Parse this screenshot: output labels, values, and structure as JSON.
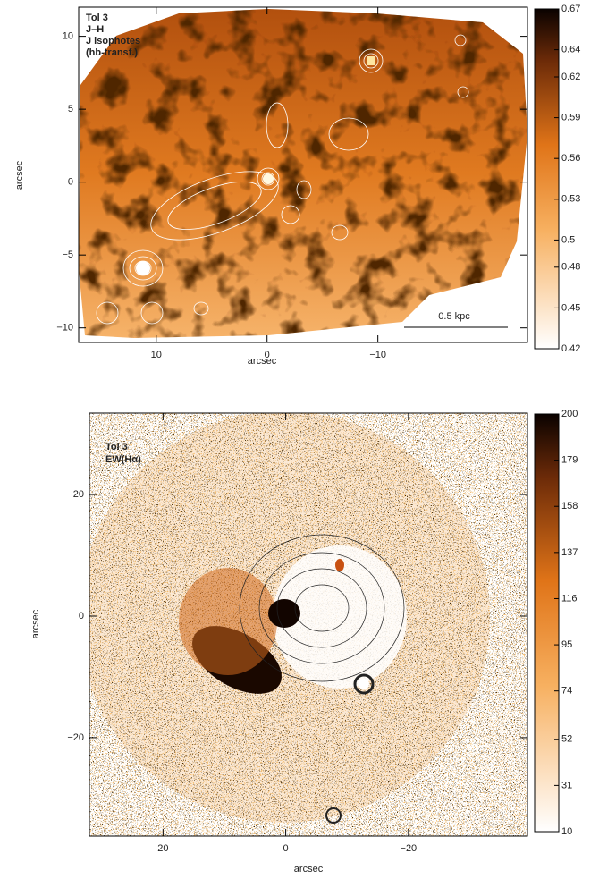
{
  "chart_data": [
    {
      "type": "image",
      "annotations": [
        "Tol 3",
        "J–H",
        "J isophotes",
        "(hb-transf.)"
      ],
      "scalebar_label": "0.5 kpc",
      "xlabel": "arcsec",
      "ylabel": "arcsec",
      "xlim": [
        17,
        -23.5
      ],
      "ylim": [
        -11,
        12
      ],
      "xticks": [
        10,
        0,
        {
          "value": -10,
          "label": "−10"
        }
      ],
      "yticks": [
        10,
        5,
        0,
        {
          "value": -5,
          "label": "−5"
        },
        {
          "value": -10,
          "label": "−10"
        }
      ],
      "colorbar": {
        "lim": [
          0.42,
          0.67
        ],
        "ticks": [
          0.67,
          0.64,
          0.62,
          0.59,
          0.56,
          0.53,
          0.5,
          0.48,
          0.45,
          0.42
        ]
      }
    },
    {
      "type": "image",
      "annotations": [
        "Tol 3",
        "EW(Hα)"
      ],
      "xlabel": "arcsec",
      "ylabel": "arcsec",
      "xlim": [
        32,
        -39.4
      ],
      "ylim": [
        -36.2,
        33.4
      ],
      "xticks": [
        20,
        0,
        {
          "value": -20,
          "label": "−20"
        }
      ],
      "yticks": [
        20,
        0,
        {
          "value": -20,
          "label": "−20"
        }
      ],
      "colorbar": {
        "lim": [
          10,
          200
        ],
        "ticks": [
          200,
          179,
          158,
          137,
          116,
          95,
          74,
          52,
          31,
          10
        ]
      }
    }
  ]
}
